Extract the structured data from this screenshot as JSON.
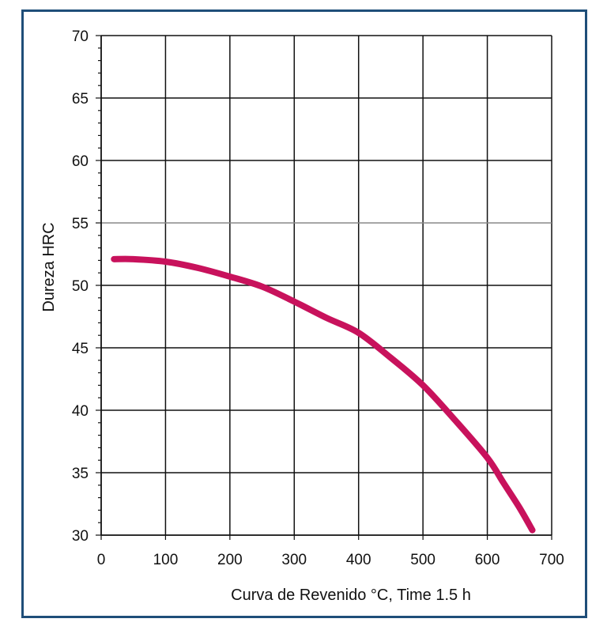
{
  "chart_data": {
    "type": "line",
    "title": "",
    "xlabel": "Curva de Revenido °C, Time 1.5 h",
    "ylabel": "Dureza HRC",
    "xlim": [
      0,
      700
    ],
    "ylim": [
      30,
      70
    ],
    "x_ticks": [
      "0",
      "100",
      "200",
      "300",
      "400",
      "500",
      "600",
      "700"
    ],
    "y_ticks": [
      "30",
      "35",
      "40",
      "45",
      "50",
      "55",
      "60",
      "65",
      "70"
    ],
    "grid": true,
    "series": [
      {
        "color": "#c8125c",
        "x": [
          20,
          50,
          100,
          150,
          200,
          250,
          300,
          350,
          400,
          450,
          500,
          550,
          600,
          625,
          650,
          670
        ],
        "y": [
          52.1,
          52.1,
          51.9,
          51.4,
          50.7,
          49.9,
          48.7,
          47.4,
          46.2,
          44.2,
          42.0,
          39.2,
          36.2,
          34.2,
          32.2,
          30.4
        ]
      }
    ]
  }
}
